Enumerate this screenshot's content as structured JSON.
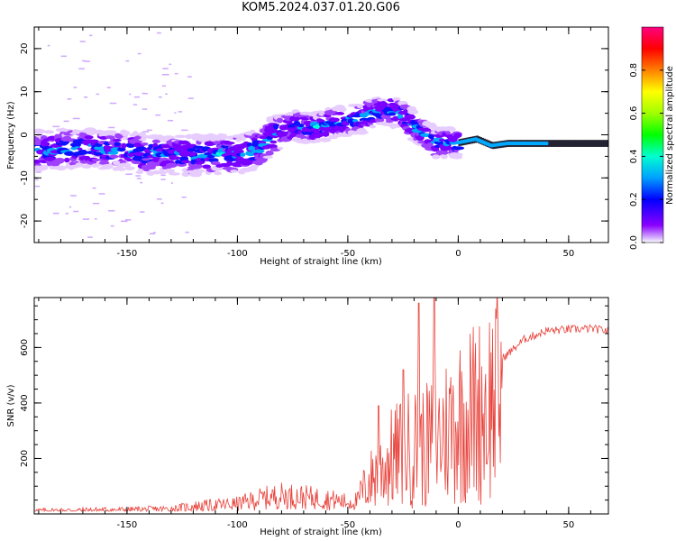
{
  "title": "KOM5.2024.037.01.20.G06",
  "colors": {
    "snr_line": "#e8413a",
    "axis": "#000000",
    "background": "#ffffff"
  },
  "chart_data": [
    {
      "type": "heatmap",
      "name": "spectrogram",
      "xlabel": "Height of straight line (km)",
      "ylabel": "Frequency (Hz)",
      "xlim": [
        -192,
        68
      ],
      "ylim": [
        -25,
        25
      ],
      "xticks": [
        "-150",
        "-100",
        "-50",
        "0",
        "50"
      ],
      "xtick_values": [
        -150,
        -100,
        -50,
        0,
        50
      ],
      "yticks": [
        "-20",
        "-10",
        "0",
        "10",
        "20"
      ],
      "ytick_values": [
        -20,
        -10,
        0,
        10,
        20
      ],
      "grid": false,
      "colormap": "rainbow",
      "ridge": [
        {
          "x": -185,
          "y": -3.5
        },
        {
          "x": -170,
          "y": -3.0
        },
        {
          "x": -155,
          "y": -3.5
        },
        {
          "x": -140,
          "y": -4.5
        },
        {
          "x": -125,
          "y": -4.8
        },
        {
          "x": -110,
          "y": -4.5
        },
        {
          "x": -100,
          "y": -4.5
        },
        {
          "x": -90,
          "y": -3.0
        },
        {
          "x": -82,
          "y": 0.5
        },
        {
          "x": -75,
          "y": 2.0
        },
        {
          "x": -65,
          "y": 1.5
        },
        {
          "x": -55,
          "y": 3.0
        },
        {
          "x": -45,
          "y": 3.5
        },
        {
          "x": -38,
          "y": 5.0
        },
        {
          "x": -32,
          "y": 6.0
        },
        {
          "x": -25,
          "y": 4.5
        },
        {
          "x": -20,
          "y": 2.0
        },
        {
          "x": -15,
          "y": 0.0
        },
        {
          "x": -10,
          "y": -2.0
        },
        {
          "x": 0,
          "y": -1.8
        },
        {
          "x": 8,
          "y": -1.0
        },
        {
          "x": 15,
          "y": -2.5
        },
        {
          "x": 22,
          "y": -2.0
        },
        {
          "x": 35,
          "y": -2.0
        },
        {
          "x": 50,
          "y": -2.0
        },
        {
          "x": 68,
          "y": -2.0
        }
      ]
    },
    {
      "type": "colorbar",
      "name": "colorbar",
      "label": "Normalized spectral amplitude",
      "range": [
        0,
        1
      ],
      "ticks": [
        "0.0",
        "0.2",
        "0.4",
        "0.6",
        "0.8"
      ],
      "tick_values": [
        0.0,
        0.2,
        0.4,
        0.6,
        0.8
      ]
    },
    {
      "type": "line",
      "name": "snr",
      "xlabel": "Height of straight line (km)",
      "ylabel": "SNR (v/v)",
      "xlim": [
        -192,
        68
      ],
      "ylim": [
        0,
        780
      ],
      "xticks": [
        "-150",
        "-100",
        "-50",
        "0",
        "50"
      ],
      "xtick_values": [
        -150,
        -100,
        -50,
        0,
        50
      ],
      "yticks": [
        "200",
        "400",
        "600"
      ],
      "ytick_values": [
        200,
        400,
        600
      ],
      "grid": false,
      "envelope": [
        {
          "x": -192,
          "y": 20
        },
        {
          "x": -150,
          "y": 25
        },
        {
          "x": -130,
          "y": 30
        },
        {
          "x": -120,
          "y": 45
        },
        {
          "x": -100,
          "y": 60
        },
        {
          "x": -90,
          "y": 90
        },
        {
          "x": -80,
          "y": 110
        },
        {
          "x": -70,
          "y": 100
        },
        {
          "x": -60,
          "y": 90
        },
        {
          "x": -50,
          "y": 70
        },
        {
          "x": -45,
          "y": 80
        },
        {
          "x": -40,
          "y": 150
        },
        {
          "x": -35,
          "y": 200
        },
        {
          "x": -30,
          "y": 250
        },
        {
          "x": -25,
          "y": 280
        },
        {
          "x": -20,
          "y": 300
        },
        {
          "x": -15,
          "y": 300
        },
        {
          "x": -10,
          "y": 340
        },
        {
          "x": -5,
          "y": 380
        },
        {
          "x": 0,
          "y": 430
        },
        {
          "x": 10,
          "y": 470
        },
        {
          "x": 20,
          "y": 560
        },
        {
          "x": 30,
          "y": 630
        },
        {
          "x": 40,
          "y": 660
        },
        {
          "x": 50,
          "y": 665
        },
        {
          "x": 60,
          "y": 668
        },
        {
          "x": 68,
          "y": 660
        }
      ],
      "spikes": [
        {
          "x": -36,
          "y": 390
        },
        {
          "x": -25,
          "y": 520
        },
        {
          "x": -18,
          "y": 760
        },
        {
          "x": -11,
          "y": 780
        },
        {
          "x": 13,
          "y": 180
        }
      ]
    }
  ]
}
